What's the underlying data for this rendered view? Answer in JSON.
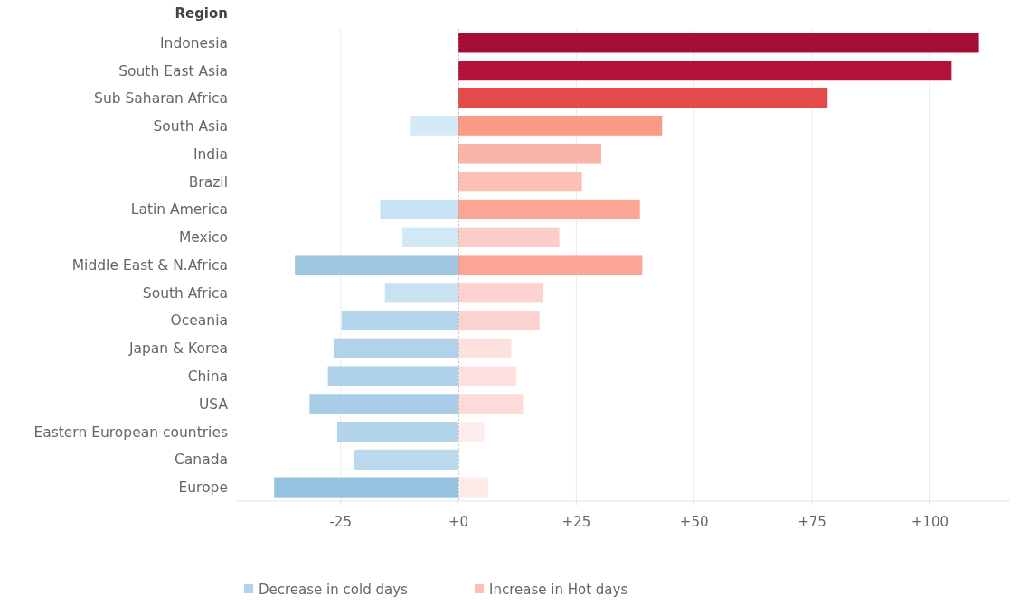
{
  "chart_data": {
    "type": "bar",
    "orientation": "horizontal",
    "stacked": true,
    "ylabel": "Region",
    "categories": [
      "Indonesia",
      "South East Asia",
      "Sub Saharan Africa",
      "South Asia",
      "India",
      "Brazil",
      "Latin America",
      "Mexico",
      "Middle East & N.Africa",
      "South Africa",
      "Oceania",
      "Japan & Korea",
      "China",
      "USA",
      "Eastern European countries",
      "Canada",
      "Europe"
    ],
    "series": [
      {
        "name": "Decrease in cold days",
        "color": "#b1d3ea",
        "colors": [
          null,
          null,
          null,
          "#d3e9f6",
          null,
          null,
          "#c7e2f2",
          "#d1e8f5",
          "#9ec8e2",
          "#c8e2f2",
          "#b4d5eb",
          "#b1d3ea",
          "#aed1e9",
          "#a8cee7",
          "#b3d4ea",
          "#bbd9ed",
          "#94c2e0"
        ],
        "values": [
          null,
          null,
          null,
          -10.1,
          null,
          null,
          -16.6,
          -11.9,
          -34.7,
          -15.6,
          -24.8,
          -26.5,
          -27.7,
          -31.6,
          -25.7,
          -22.2,
          -39.1
        ]
      },
      {
        "name": "Increase in Hot days",
        "color": "#fcc0b6",
        "colors": [
          "#a50d35",
          "#b31338",
          "#e34a4a",
          "#f99b85",
          "#fab5a8",
          "#fcc0b6",
          "#fba595",
          "#fcccc6",
          "#fba695",
          "#fcd3cf",
          "#fcd3cf",
          "#fde1df",
          "#fde0de",
          "#fcdbd9",
          "#fdeeed",
          null,
          "#fdebe9"
        ],
        "values": [
          110.4,
          104.6,
          78.3,
          43.2,
          30.3,
          26.2,
          38.5,
          21.4,
          39.0,
          18.0,
          17.2,
          11.2,
          12.3,
          13.7,
          5.5,
          null,
          6.3
        ]
      }
    ],
    "xlim": [
      -47,
      117
    ],
    "xticks": [
      {
        "value": -25,
        "label": "-25"
      },
      {
        "value": 0,
        "label": "+0"
      },
      {
        "value": 25,
        "label": "+25"
      },
      {
        "value": 50,
        "label": "+50"
      },
      {
        "value": 75,
        "label": "+75"
      },
      {
        "value": 100,
        "label": "+100"
      }
    ],
    "ref_lines": [
      {
        "axis": "x",
        "value": 0,
        "color": "#999999",
        "line_style": "dotted"
      }
    ],
    "grid": "x",
    "legend": "bottom"
  }
}
